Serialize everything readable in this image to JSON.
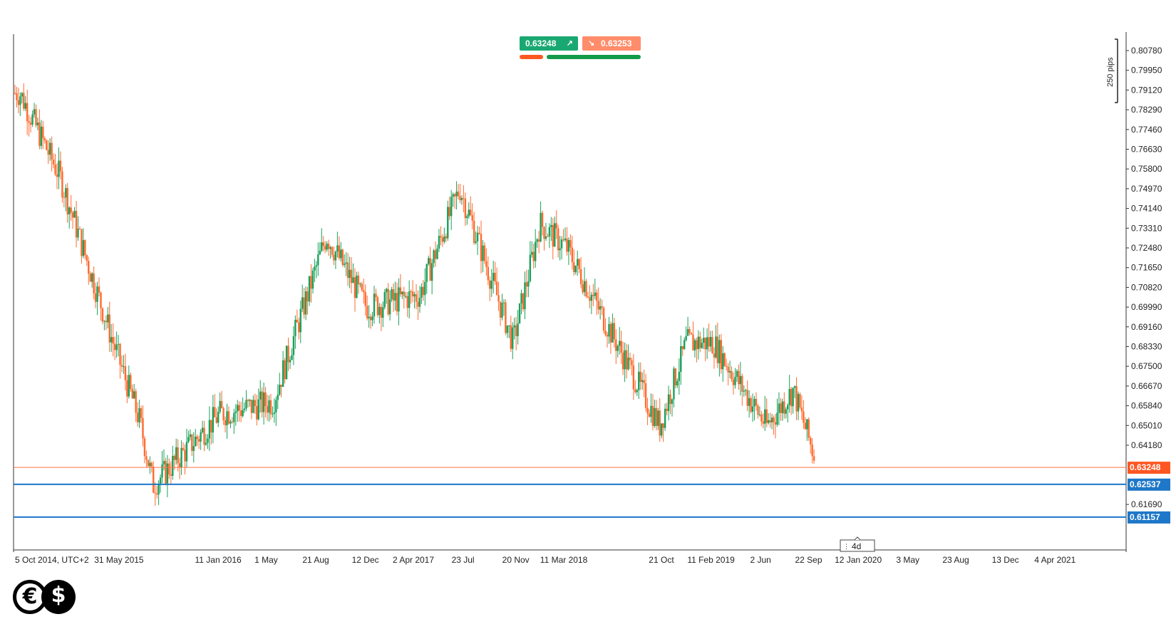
{
  "trade_panel": {
    "sell_price": "0.63248",
    "buy_price": "0.63253",
    "sell_arrow": "↗",
    "buy_arrow": "↘",
    "sell_color": "#1aa872",
    "buy_color": "#ff8c6a",
    "sell_ratio": 0.2,
    "buy_ratio": 0.8,
    "sell_bar_color": "#ff5722",
    "buy_bar_color": "#139b4a"
  },
  "pips_label": "250 pips",
  "logo": {
    "euro_symbol": "€",
    "dollar_symbol": "$",
    "icon": "euro-dollar-logo-icon"
  },
  "colors": {
    "up": "#1aa05a",
    "down": "#ff6a2e",
    "axis": "#222222",
    "support": "#1e77c8",
    "price_line": "#ff7043"
  },
  "chart_data": {
    "type": "candlestick",
    "title": "",
    "timezone_label": "UTC+2",
    "y_ticks": [
      "0.80780",
      "0.79950",
      "0.79120",
      "0.78290",
      "0.77460",
      "0.76630",
      "0.75800",
      "0.74970",
      "0.74140",
      "0.73310",
      "0.72480",
      "0.71650",
      "0.70820",
      "0.69990",
      "0.69160",
      "0.68330",
      "0.67500",
      "0.66670",
      "0.65840",
      "0.65010",
      "0.64180",
      "0.61690"
    ],
    "x_ticks": [
      "5 Oct 2014, UTC+2",
      "31 May 2015",
      "11 Jan 2016",
      "1 May",
      "21 Aug",
      "12 Dec",
      "2 Apr 2017",
      "23 Jul",
      "20 Nov",
      "11 Mar 2018",
      "21 Oct",
      "11 Feb 2019",
      "2 Jun",
      "22 Sep",
      "12 Jan 2020",
      "3 May",
      "23 Aug",
      "13 Dec",
      "4 Apr 2021"
    ],
    "ylim": [
      0.6115,
      0.812
    ],
    "current_price": {
      "label": "0.63248",
      "value": 0.63248
    },
    "horizontal_levels": [
      {
        "label": "0.62537",
        "value": 0.62537
      },
      {
        "label": "0.61157",
        "value": 0.61157
      }
    ],
    "timeframe_label": "4d",
    "key_prices": [
      {
        "date": "2014-10",
        "close": 0.79
      },
      {
        "date": "2015-01",
        "close": 0.755
      },
      {
        "date": "2015-05",
        "close": 0.685
      },
      {
        "date": "2015-07",
        "close": 0.652
      },
      {
        "date": "2015-08",
        "close": 0.625
      },
      {
        "date": "2016-01",
        "close": 0.655
      },
      {
        "date": "2016-05",
        "close": 0.66
      },
      {
        "date": "2016-09",
        "close": 0.73
      },
      {
        "date": "2016-12",
        "close": 0.7
      },
      {
        "date": "2017-04",
        "close": 0.705
      },
      {
        "date": "2017-07",
        "close": 0.75
      },
      {
        "date": "2017-11",
        "close": 0.685
      },
      {
        "date": "2018-01",
        "close": 0.735
      },
      {
        "date": "2018-03",
        "close": 0.725
      },
      {
        "date": "2018-10",
        "close": 0.65
      },
      {
        "date": "2018-12",
        "close": 0.685
      },
      {
        "date": "2019-02",
        "close": 0.685
      },
      {
        "date": "2019-06",
        "close": 0.65
      },
      {
        "date": "2019-08",
        "close": 0.665
      },
      {
        "date": "2019-10",
        "close": 0.63
      }
    ]
  }
}
